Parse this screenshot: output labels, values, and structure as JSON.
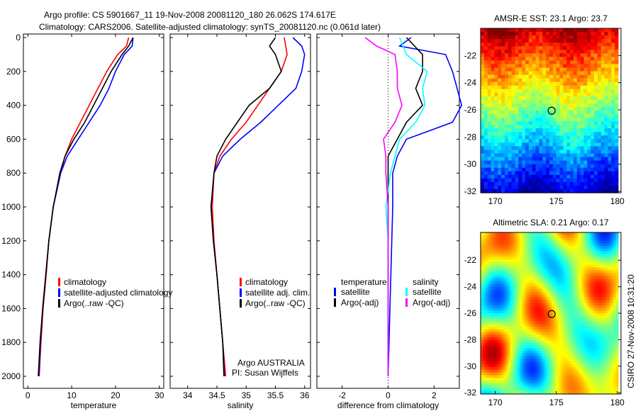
{
  "title_line1": "Argo profile: CS 5901667_11 19-Nov-2008 20081120_180 26.062S 174.617E",
  "title_line2": "Climatology: CARS2006. Satellite-adjusted climatology: synTS_20081120.nc (0.061d later)",
  "footer": "CSIRO 27-Nov-2008 10:31:20",
  "credit_line1": "Argo AUSTRALIA",
  "credit_line2": "PI: Susan Wijffels",
  "chart_data": [
    {
      "type": "line",
      "xlabel": "temperature",
      "xlim": [
        -1,
        31
      ],
      "xticks": [
        0,
        10,
        20,
        30
      ],
      "ylim": [
        0,
        2050
      ],
      "yticks": [
        0,
        200,
        400,
        600,
        800,
        1000,
        1200,
        1400,
        1600,
        1800,
        2000
      ],
      "legend": [
        "climatology",
        "satellite-adjusted climatology",
        "Argo(..raw -QC)"
      ],
      "series": [
        {
          "name": "climatology",
          "color": "#ff0000",
          "depth": [
            0,
            50,
            100,
            200,
            300,
            400,
            500,
            600,
            700,
            800,
            1000,
            1200,
            1400,
            1600,
            1800,
            2000
          ],
          "values": [
            23,
            22.5,
            20.5,
            18,
            16,
            14,
            12,
            10,
            8.5,
            7.5,
            5.8,
            4.8,
            4.2,
            3.5,
            3,
            2.6
          ]
        },
        {
          "name": "satellite-adjusted climatology",
          "color": "#0000ff",
          "depth": [
            0,
            50,
            100,
            200,
            300,
            400,
            500,
            600,
            700,
            800,
            1000,
            1200,
            1400,
            1600,
            1800,
            2000
          ],
          "values": [
            24,
            23.8,
            22,
            20,
            18.5,
            16.5,
            14,
            11.5,
            9,
            7.5,
            5.8,
            4.8,
            4.1,
            3.4,
            2.9,
            2.5
          ]
        },
        {
          "name": "Argo(..raw -QC)",
          "color": "#000000",
          "depth": [
            0,
            50,
            100,
            200,
            300,
            400,
            500,
            600,
            700,
            800,
            1000,
            1200,
            1400,
            1600,
            1800,
            2000
          ],
          "values": [
            24,
            23,
            21.5,
            19,
            17,
            15,
            13,
            10.5,
            8.5,
            7.3,
            5.8,
            4.8,
            4.1,
            3.4,
            2.8,
            2.4
          ]
        }
      ]
    },
    {
      "type": "line",
      "xlabel": "salinity",
      "xlim": [
        33.7,
        36.1
      ],
      "xticks": [
        34,
        34.5,
        35,
        35.5,
        36
      ],
      "ylim": [
        0,
        2050
      ],
      "legend": [
        "climatology",
        "satellite adj. clim.",
        "Argo(..raw -QC)"
      ],
      "series": [
        {
          "name": "climatology",
          "color": "#ff0000",
          "depth": [
            0,
            100,
            200,
            300,
            400,
            500,
            600,
            700,
            800,
            1000,
            1200,
            1400,
            1600,
            1800,
            2000
          ],
          "values": [
            35.65,
            35.7,
            35.6,
            35.4,
            35.2,
            35.0,
            34.75,
            34.55,
            34.45,
            34.42,
            34.45,
            34.5,
            34.55,
            34.6,
            34.65
          ]
        },
        {
          "name": "satellite adj. clim.",
          "color": "#0000ff",
          "depth": [
            0,
            50,
            100,
            200,
            300,
            400,
            500,
            600,
            700,
            800,
            1000,
            1200,
            1400,
            1600,
            1800,
            2000
          ],
          "values": [
            35.8,
            35.95,
            36.0,
            35.95,
            35.85,
            35.55,
            35.25,
            34.9,
            34.6,
            34.45,
            34.4,
            34.44,
            34.5,
            34.55,
            34.6,
            34.63
          ]
        },
        {
          "name": "Argo(..raw -QC)",
          "color": "#000000",
          "depth": [
            0,
            50,
            100,
            200,
            300,
            400,
            500,
            600,
            700,
            800,
            1000,
            1200,
            1400,
            1600,
            1800,
            2000
          ],
          "values": [
            35.5,
            35.4,
            35.5,
            35.6,
            35.4,
            35.05,
            34.85,
            34.65,
            34.5,
            34.45,
            34.4,
            34.44,
            34.5,
            34.55,
            34.6,
            34.62
          ]
        }
      ]
    },
    {
      "type": "line",
      "xlabel": "difference from climatology",
      "xlim": [
        -3.1,
        3.1
      ],
      "xticks": [
        -2,
        0,
        2
      ],
      "ylim": [
        0,
        2050
      ],
      "legend_headers": [
        "temperature",
        "salinity"
      ],
      "legend": [
        "satellite",
        "Argo(-adj)",
        "satellite",
        "Argo(-adj)"
      ],
      "series": [
        {
          "name": "temperature satellite",
          "color": "#0000ff",
          "depth": [
            0,
            50,
            100,
            200,
            300,
            400,
            500,
            600,
            700,
            800,
            1000,
            1500,
            2000
          ],
          "values": [
            1,
            0.5,
            2.5,
            2.8,
            3.0,
            3.2,
            2.8,
            0.8,
            0.4,
            0.2,
            0.2,
            0.1,
            0
          ]
        },
        {
          "name": "temperature Argo(-adj)",
          "color": "#000000",
          "depth": [
            0,
            100,
            200,
            300,
            400,
            500,
            600,
            700,
            800,
            1000,
            2000
          ],
          "values": [
            0.8,
            1.5,
            1.5,
            1.2,
            1.5,
            0.8,
            0.4,
            0,
            0,
            0,
            0
          ]
        },
        {
          "name": "salinity satellite",
          "color": "#00ffff",
          "depth": [
            0,
            100,
            200,
            300,
            400,
            500,
            600,
            700,
            800,
            1000,
            1200,
            2000
          ],
          "values": [
            0.5,
            0.8,
            1.7,
            1.5,
            1.6,
            1.2,
            0.5,
            0.3,
            0.1,
            -0.1,
            0,
            0
          ]
        },
        {
          "name": "salinity Argo(-adj)",
          "color": "#ff00ff",
          "depth": [
            0,
            50,
            100,
            200,
            300,
            400,
            500,
            600,
            700,
            800,
            1000,
            2000
          ],
          "values": [
            -1.0,
            -0.5,
            0.3,
            0.4,
            0.4,
            0.6,
            0.3,
            -0.2,
            -0.1,
            -0.1,
            0,
            0
          ]
        }
      ]
    },
    {
      "type": "heatmap",
      "title": "AMSR-E SST: 23.1 Argo: 23.7",
      "xticks": [
        170,
        175,
        180
      ],
      "yticks": [
        -22,
        -24,
        -26,
        -28,
        -30,
        -32
      ],
      "xlim": [
        168.8,
        180.3
      ],
      "ylim": [
        -32.1,
        -20
      ],
      "marker": [
        174.617,
        -26.062
      ]
    },
    {
      "type": "heatmap",
      "title": "Altimetric SLA: 0.21 Argo: 0.17",
      "xticks": [
        170,
        175,
        180
      ],
      "yticks": [
        -22,
        -24,
        -26,
        -28,
        -30,
        -32
      ],
      "xlim": [
        168.8,
        180.3
      ],
      "ylim": [
        -32.1,
        -19.9
      ],
      "marker": [
        174.617,
        -26.062
      ]
    }
  ]
}
